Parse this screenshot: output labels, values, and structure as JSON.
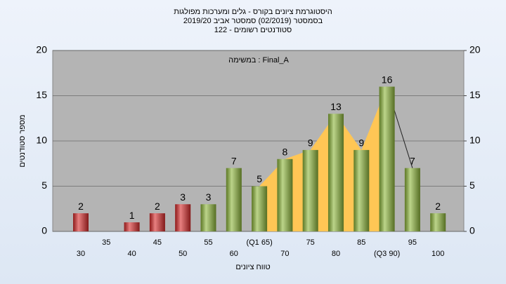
{
  "chart_data": {
    "type": "bar",
    "title": "היסטוגרמת ציונים בקורס - גלים ומערכות מפולגות",
    "subtitle": "בסמסטר  (02/2019)  סמסטר אביב 2019/20",
    "subtitle2": "סטודנטים רשומים - 122",
    "annotation": "במשימה : Final_A",
    "x_label": "טווח ציונים",
    "y_label": "מספר סטודנטים",
    "categories": [
      "30",
      "35",
      "40",
      "45",
      "50",
      "55",
      "60",
      "(Q1 65)",
      "70",
      "75",
      "80",
      "85",
      "(Q3 90)",
      "95",
      "100"
    ],
    "values": [
      2,
      null,
      1,
      2,
      3,
      3,
      7,
      5,
      8,
      9,
      13,
      9,
      16,
      7,
      2
    ],
    "colors": [
      "#d92b2b",
      "#d92b2b",
      "#d92b2b",
      "#d92b2b",
      "#d92b2b",
      "#8fb83c",
      "#8fb83c",
      "#8fb83c",
      "#8fb83c",
      "#8fb83c",
      "#8fb83c",
      "#8fb83c",
      "#8fb83c",
      "#8fb83c",
      "#8fb83c"
    ],
    "area_color": "#ffc655",
    "ylim": [
      0,
      20
    ],
    "yticks": [
      0,
      5,
      10,
      15,
      20
    ],
    "y2lim": [
      0,
      20
    ],
    "y2ticks": [
      0,
      5,
      10,
      15,
      20
    ],
    "grid": true
  }
}
